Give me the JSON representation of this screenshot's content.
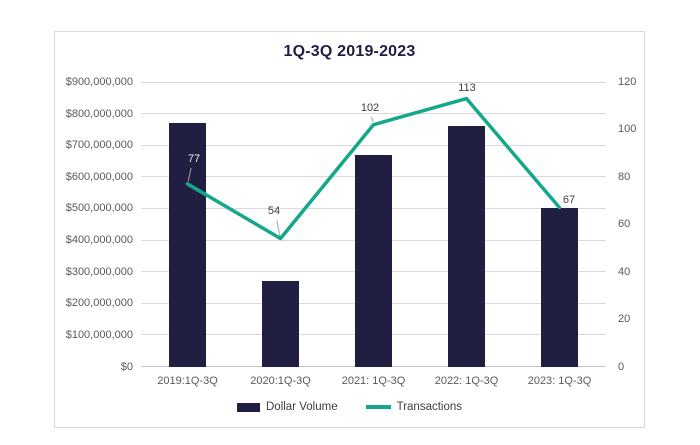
{
  "chart_data": {
    "type": "combo",
    "title": "1Q-3Q 2019-2023",
    "categories": [
      "2019:1Q-3Q",
      "2020:1Q-3Q",
      "2021: 1Q-3Q",
      "2022: 1Q-3Q",
      "2023: 1Q-3Q"
    ],
    "series": [
      {
        "name": "Dollar Volume",
        "type": "bar",
        "axis": "left",
        "values": [
          770000000,
          270000000,
          668000000,
          760000000,
          500000000
        ]
      },
      {
        "name": "Transactions",
        "type": "line",
        "axis": "right",
        "values": [
          77,
          54,
          102,
          113,
          67
        ],
        "data_labels": [
          "77",
          "54",
          "102",
          "113",
          "67"
        ],
        "data_label_colors": [
          "#f2f2f2",
          "#404040",
          "#404040",
          "#404040",
          "#404040"
        ],
        "leader_lines": [
          true,
          true,
          true,
          false,
          false
        ]
      }
    ],
    "left_axis": {
      "min": 0,
      "max": 900000000,
      "step": 100000000,
      "ticks": [
        "$0",
        "$100,000,000",
        "$200,000,000",
        "$300,000,000",
        "$400,000,000",
        "$500,000,000",
        "$600,000,000",
        "$700,000,000",
        "$800,000,000",
        "$900,000,000"
      ]
    },
    "right_axis": {
      "min": 0,
      "max": 120,
      "step": 20,
      "ticks": [
        "0",
        "20",
        "40",
        "60",
        "80",
        "100",
        "120"
      ]
    },
    "grid": "horizontal",
    "legend_position": "bottom"
  },
  "legend": {
    "items": [
      {
        "label": "Dollar Volume",
        "swatch": "bar"
      },
      {
        "label": "Transactions",
        "swatch": "line"
      }
    ]
  },
  "colors": {
    "bar": "#201e41",
    "line": "#13a78b",
    "title": "#1f1f45",
    "axis_text": "#595959",
    "data_label": "#404040",
    "data_label_on_bar": "#f2f2f2",
    "gridline": "#d9d9d9",
    "baseline": "#c6c6c6",
    "leader": "#a6a6a6",
    "card_border": "#d9d9d9",
    "background": "#ffffff"
  }
}
